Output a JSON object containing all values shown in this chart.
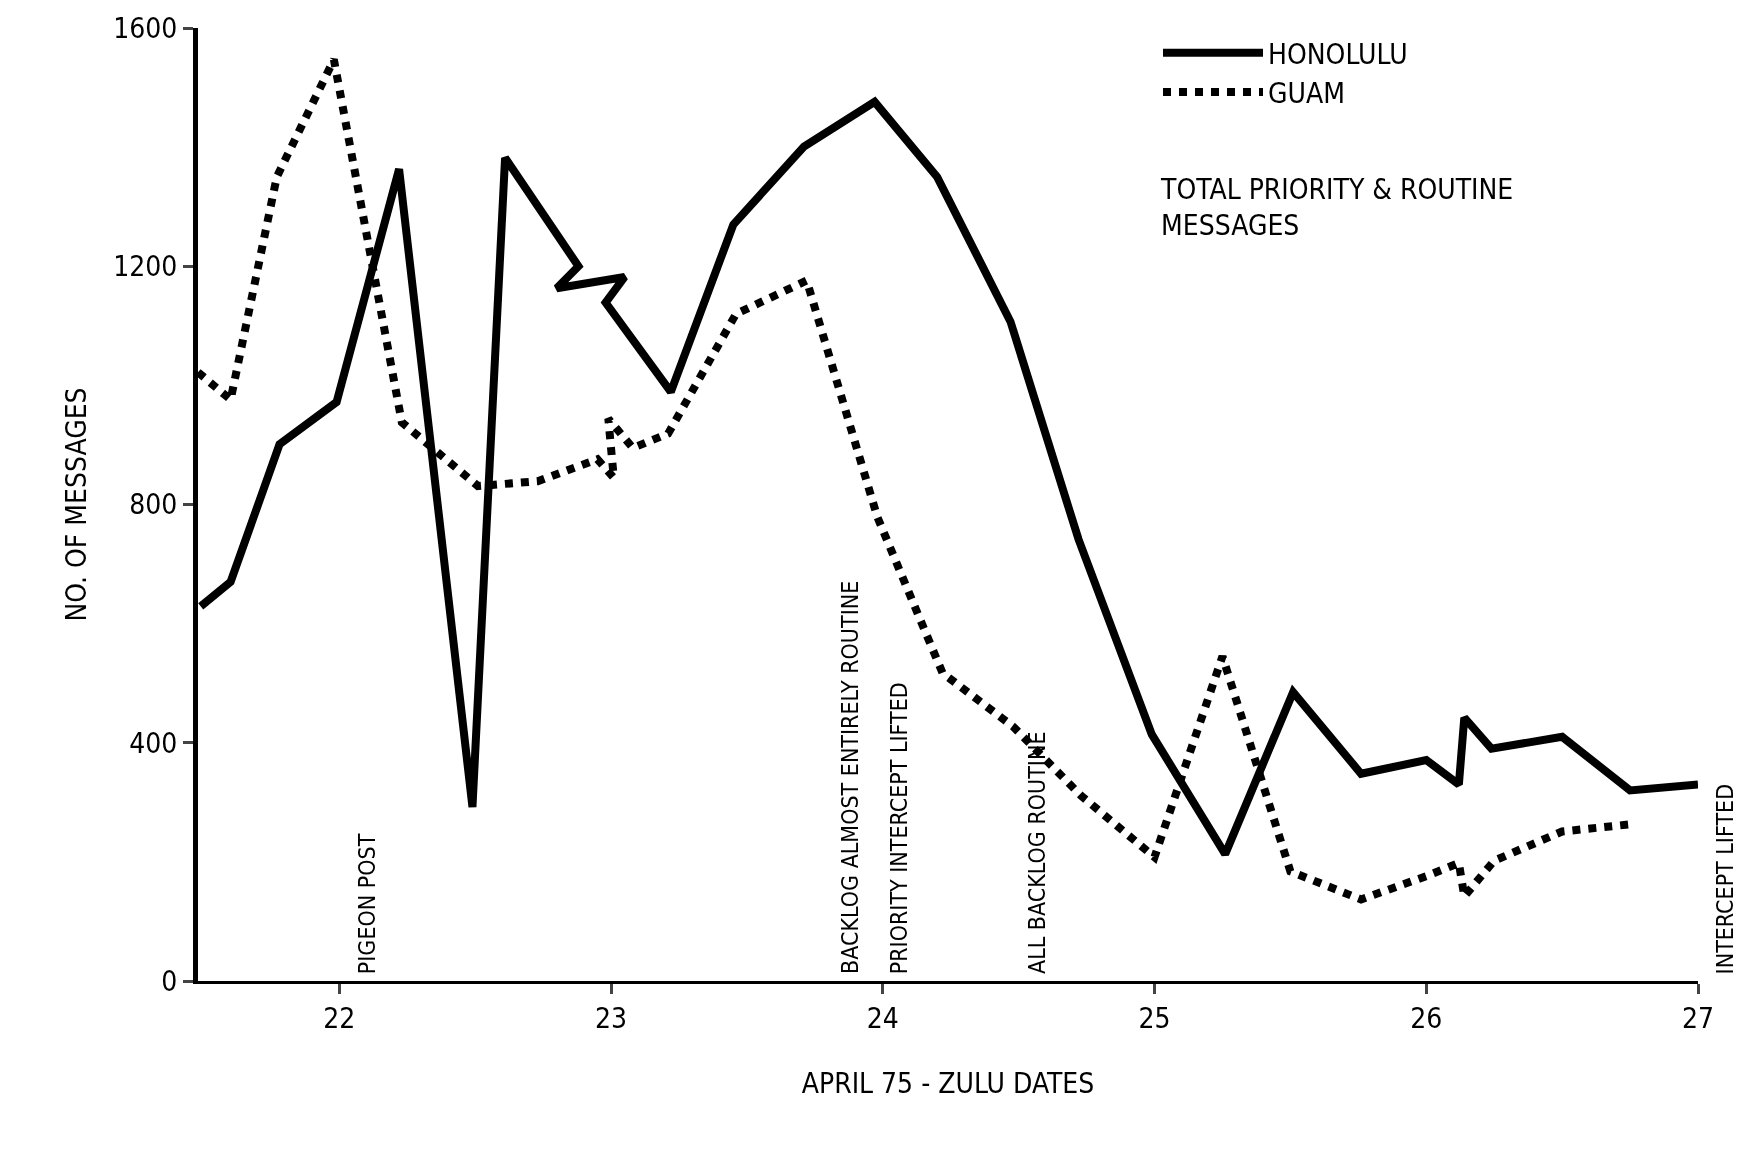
{
  "chart_data": {
    "type": "line",
    "xlabel": "APRIL 75 - ZULU DATES",
    "ylabel": "NO. OF MESSAGES",
    "xlim": [
      21.48,
      27
    ],
    "ylim": [
      0,
      1600
    ],
    "xticks": [
      22,
      23,
      24,
      25,
      26,
      27
    ],
    "yticks": [
      0,
      400,
      800,
      1200,
      1600
    ],
    "grid": false,
    "legend": "top right",
    "marker": "none",
    "series": [
      {
        "name": "HONOLULU",
        "color": "#000000",
        "line_style": "solid",
        "x": [
          21.49,
          21.6,
          21.78,
          21.99,
          22.22,
          22.49,
          22.61,
          22.88,
          22.8,
          23.05,
          22.98,
          23.22,
          23.45,
          23.71,
          23.97,
          24.2,
          24.47,
          24.72,
          24.99,
          25.26,
          25.51,
          25.76,
          26.0,
          26.12,
          26.14,
          26.24,
          26.5,
          26.75,
          27.0
        ],
        "values": [
          629,
          670,
          901,
          972,
          1363,
          292,
          1382,
          1200,
          1163,
          1182,
          1139,
          989,
          1270,
          1401,
          1476,
          1350,
          1107,
          742,
          414,
          213,
          485,
          348,
          371,
          330,
          442,
          390,
          410,
          320,
          330
        ]
      },
      {
        "name": "GUAM",
        "color": "#000000",
        "line_style": "dotted",
        "x": [
          21.48,
          21.6,
          21.77,
          21.98,
          22.23,
          22.51,
          22.73,
          22.95,
          23.01,
          22.99,
          23.08,
          23.21,
          23.46,
          23.72,
          23.98,
          24.22,
          24.48,
          24.73,
          25.0,
          25.25,
          25.5,
          25.76,
          26.0,
          26.12,
          26.14,
          26.25,
          26.5,
          26.77
        ],
        "values": [
          1022,
          976,
          1350,
          1547,
          938,
          831,
          839,
          876,
          845,
          944,
          895,
          919,
          1120,
          1176,
          779,
          517,
          427,
          311,
          208,
          545,
          184,
          137,
          176,
          198,
          142,
          202,
          251,
          264
        ]
      }
    ],
    "annotations": [
      "TOTAL PRIORITY & ROUTINE MESSAGES",
      "PIGEON POST",
      "BACKLOG ALMOST ENTIRELY ROUTINE",
      "PRIORITY INTERCEPT LIFTED",
      "ALL BACKLOG ROUTINE",
      "INTERCEPT LIFTED"
    ]
  }
}
